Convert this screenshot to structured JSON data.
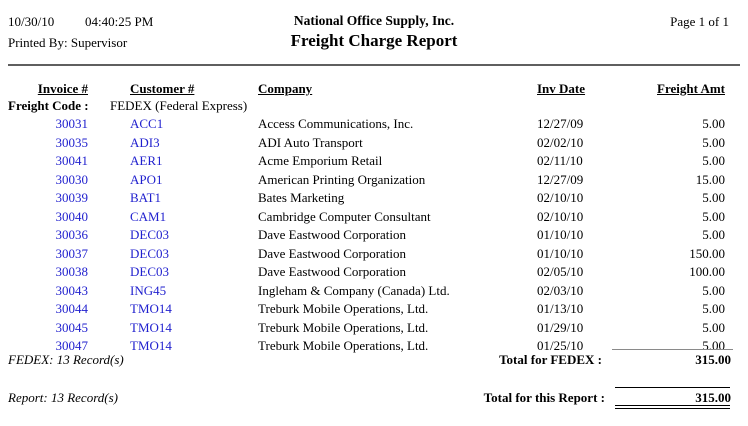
{
  "colors": {
    "link_blue": "#1f1fce",
    "rule_gray": "#5f5f5f"
  },
  "header": {
    "date": "10/30/10",
    "time": "04:40:25 PM",
    "printed_by": "Printed By: Supervisor",
    "company": "National Office Supply, Inc.",
    "title": "Freight Charge Report",
    "page_info": "Page 1 of 1"
  },
  "table": {
    "columns": [
      {
        "label": "Invoice #",
        "field": "invoice"
      },
      {
        "label": "Customer #",
        "field": "customer"
      },
      {
        "label": "Company",
        "field": "company"
      },
      {
        "label": "Inv Date",
        "field": "inv_date"
      },
      {
        "label": "Freight Amt",
        "field": "amount"
      }
    ],
    "group_label": "Freight Code :",
    "group_value": "FEDEX (Federal Express)",
    "rows": [
      {
        "invoice": "30031",
        "customer": "ACC1",
        "company": "Access Communications, Inc.",
        "inv_date": "12/27/09",
        "amount": "5.00"
      },
      {
        "invoice": "30035",
        "customer": "ADI3",
        "company": "ADI Auto Transport",
        "inv_date": "02/02/10",
        "amount": "5.00"
      },
      {
        "invoice": "30041",
        "customer": "AER1",
        "company": "Acme Emporium Retail",
        "inv_date": "02/11/10",
        "amount": "5.00"
      },
      {
        "invoice": "30030",
        "customer": "APO1",
        "company": "American Printing Organization",
        "inv_date": "12/27/09",
        "amount": "15.00"
      },
      {
        "invoice": "30039",
        "customer": "BAT1",
        "company": "Bates Marketing",
        "inv_date": "02/10/10",
        "amount": "5.00"
      },
      {
        "invoice": "30040",
        "customer": "CAM1",
        "company": "Cambridge Computer Consultant",
        "inv_date": "02/10/10",
        "amount": "5.00"
      },
      {
        "invoice": "30036",
        "customer": "DEC03",
        "company": "Dave Eastwood Corporation",
        "inv_date": "01/10/10",
        "amount": "5.00"
      },
      {
        "invoice": "30037",
        "customer": "DEC03",
        "company": "Dave Eastwood Corporation",
        "inv_date": "01/10/10",
        "amount": "150.00"
      },
      {
        "invoice": "30038",
        "customer": "DEC03",
        "company": "Dave Eastwood Corporation",
        "inv_date": "02/05/10",
        "amount": "100.00"
      },
      {
        "invoice": "30043",
        "customer": "ING45",
        "company": "Ingleham & Company (Canada) Ltd.",
        "inv_date": "02/03/10",
        "amount": "5.00"
      },
      {
        "invoice": "30044",
        "customer": "TMO14",
        "company": "Treburk Mobile Operations, Ltd.",
        "inv_date": "01/13/10",
        "amount": "5.00"
      },
      {
        "invoice": "30045",
        "customer": "TMO14",
        "company": "Treburk Mobile Operations, Ltd.",
        "inv_date": "01/29/10",
        "amount": "5.00"
      },
      {
        "invoice": "30047",
        "customer": "TMO14",
        "company": "Treburk Mobile Operations, Ltd.",
        "inv_date": "01/25/10",
        "amount": "5.00"
      }
    ]
  },
  "group_footer": {
    "records": "FEDEX: 13 Record(s)",
    "total_label": "Total for FEDEX :",
    "total_amount": "315.00"
  },
  "report_footer": {
    "records": "Report: 13 Record(s)",
    "total_label": "Total for this Report :",
    "total_amount": "315.00"
  }
}
